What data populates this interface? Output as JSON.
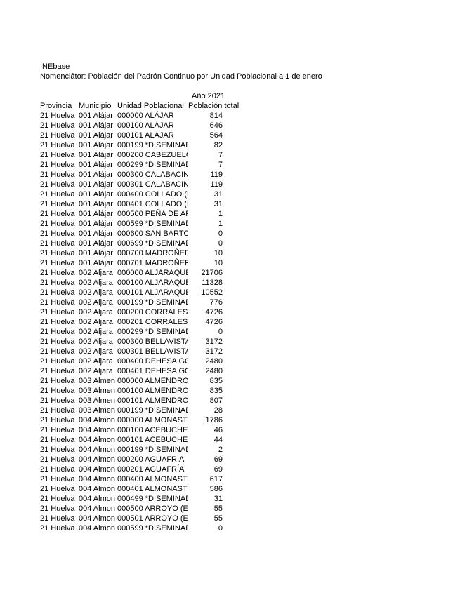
{
  "page": {
    "title": "INEbase",
    "subtitle": "Nomenclátor: Población del Padrón Continuo por Unidad Poblacional a 1 de enero"
  },
  "colors": {
    "text": "#000000",
    "background": "#ffffff"
  },
  "table": {
    "year_header": "Año 2021",
    "columns": {
      "provincia": "Provincia",
      "municipio": "Municipio",
      "unidad": "Unidad Poblacional",
      "poblacion": "Población total"
    },
    "rows": [
      {
        "provincia": "21 Huelva",
        "municipio": "001 Alájar",
        "unidad": "000000 ALÁJAR",
        "poblacion": "814"
      },
      {
        "provincia": "21 Huelva",
        "municipio": "001 Alájar",
        "unidad": "000100 ALÁJAR",
        "poblacion": "646"
      },
      {
        "provincia": "21 Huelva",
        "municipio": "001 Alájar",
        "unidad": "000101 ALÁJAR",
        "poblacion": "564"
      },
      {
        "provincia": "21 Huelva",
        "municipio": "001 Alájar",
        "unidad": "000199 *DISEMINAD",
        "poblacion": "82"
      },
      {
        "provincia": "21 Huelva",
        "municipio": "001 Alájar",
        "unidad": "000200 CABEZUELO",
        "poblacion": "7"
      },
      {
        "provincia": "21 Huelva",
        "municipio": "001 Alájar",
        "unidad": "000299 *DISEMINAD",
        "poblacion": "7"
      },
      {
        "provincia": "21 Huelva",
        "municipio": "001 Alájar",
        "unidad": "000300 CALABACIN(",
        "poblacion": "119"
      },
      {
        "provincia": "21 Huelva",
        "municipio": "001 Alájar",
        "unidad": "000301 CALABACIN(",
        "poblacion": "119"
      },
      {
        "provincia": "21 Huelva",
        "municipio": "001 Alájar",
        "unidad": "000400 COLLADO (E",
        "poblacion": "31"
      },
      {
        "provincia": "21 Huelva",
        "municipio": "001 Alájar",
        "unidad": "000401 COLLADO (E",
        "poblacion": "31"
      },
      {
        "provincia": "21 Huelva",
        "municipio": "001 Alájar",
        "unidad": "000500 PEÑA DE AR",
        "poblacion": "1"
      },
      {
        "provincia": "21 Huelva",
        "municipio": "001 Alájar",
        "unidad": "000599 *DISEMINAD",
        "poblacion": "1"
      },
      {
        "provincia": "21 Huelva",
        "municipio": "001 Alájar",
        "unidad": "000600 SAN BARTO",
        "poblacion": "0"
      },
      {
        "provincia": "21 Huelva",
        "municipio": "001 Alájar",
        "unidad": "000699 *DISEMINAD",
        "poblacion": "0"
      },
      {
        "provincia": "21 Huelva",
        "municipio": "001 Alájar",
        "unidad": "000700 MADROÑER(",
        "poblacion": "10"
      },
      {
        "provincia": "21 Huelva",
        "municipio": "001 Alájar",
        "unidad": "000701 MADROÑER(",
        "poblacion": "10"
      },
      {
        "provincia": "21 Huelva",
        "municipio": "002 Aljara",
        "unidad": "000000 ALJARAQUE",
        "poblacion": "21706"
      },
      {
        "provincia": "21 Huelva",
        "municipio": "002 Aljara",
        "unidad": "000100 ALJARAQUE",
        "poblacion": "11328"
      },
      {
        "provincia": "21 Huelva",
        "municipio": "002 Aljara",
        "unidad": "000101 ALJARAQUE",
        "poblacion": "10552"
      },
      {
        "provincia": "21 Huelva",
        "municipio": "002 Aljara",
        "unidad": "000199 *DISEMINAD",
        "poblacion": "776"
      },
      {
        "provincia": "21 Huelva",
        "municipio": "002 Aljara",
        "unidad": "000200 CORRALES",
        "poblacion": "4726"
      },
      {
        "provincia": "21 Huelva",
        "municipio": "002 Aljara",
        "unidad": "000201 CORRALES",
        "poblacion": "4726"
      },
      {
        "provincia": "21 Huelva",
        "municipio": "002 Aljara",
        "unidad": "000299 *DISEMINAD",
        "poblacion": "0"
      },
      {
        "provincia": "21 Huelva",
        "municipio": "002 Aljara",
        "unidad": "000300 BELLAVISTA",
        "poblacion": "3172"
      },
      {
        "provincia": "21 Huelva",
        "municipio": "002 Aljara",
        "unidad": "000301 BELLAVISTA",
        "poblacion": "3172"
      },
      {
        "provincia": "21 Huelva",
        "municipio": "002 Aljara",
        "unidad": "000400 DEHESA GO",
        "poblacion": "2480"
      },
      {
        "provincia": "21 Huelva",
        "municipio": "002 Aljara",
        "unidad": "000401 DEHESA GO",
        "poblacion": "2480"
      },
      {
        "provincia": "21 Huelva",
        "municipio": "003 Almen",
        "unidad": "000000 ALMENDRO (",
        "poblacion": "835"
      },
      {
        "provincia": "21 Huelva",
        "municipio": "003 Almen",
        "unidad": "000100 ALMENDRO (",
        "poblacion": "835"
      },
      {
        "provincia": "21 Huelva",
        "municipio": "003 Almen",
        "unidad": "000101 ALMENDRO (",
        "poblacion": "807"
      },
      {
        "provincia": "21 Huelva",
        "municipio": "003 Almen",
        "unidad": "000199 *DISEMINAD",
        "poblacion": "28"
      },
      {
        "provincia": "21 Huelva",
        "municipio": "004 Almon",
        "unidad": "000000 ALMONASTE",
        "poblacion": "1786"
      },
      {
        "provincia": "21 Huelva",
        "municipio": "004 Almon",
        "unidad": "000100 ACEBUCHE",
        "poblacion": "46"
      },
      {
        "provincia": "21 Huelva",
        "municipio": "004 Almon",
        "unidad": "000101 ACEBUCHE",
        "poblacion": "44"
      },
      {
        "provincia": "21 Huelva",
        "municipio": "004 Almon",
        "unidad": "000199 *DISEMINAD",
        "poblacion": "2"
      },
      {
        "provincia": "21 Huelva",
        "municipio": "004 Almon",
        "unidad": "000200 AGUAFRÍA",
        "poblacion": "69"
      },
      {
        "provincia": "21 Huelva",
        "municipio": "004 Almon",
        "unidad": "000201 AGUAFRÍA",
        "poblacion": "69"
      },
      {
        "provincia": "21 Huelva",
        "municipio": "004 Almon",
        "unidad": "000400 ALMONASTE",
        "poblacion": "617"
      },
      {
        "provincia": "21 Huelva",
        "municipio": "004 Almon",
        "unidad": "000401 ALMONASTE",
        "poblacion": "586"
      },
      {
        "provincia": "21 Huelva",
        "municipio": "004 Almon",
        "unidad": "000499 *DISEMINAD",
        "poblacion": "31"
      },
      {
        "provincia": "21 Huelva",
        "municipio": "004 Almon",
        "unidad": "000500 ARROYO (EL",
        "poblacion": "55"
      },
      {
        "provincia": "21 Huelva",
        "municipio": "004 Almon",
        "unidad": "000501 ARROYO (EL",
        "poblacion": "55"
      },
      {
        "provincia": "21 Huelva",
        "municipio": "004 Almon",
        "unidad": "000599 *DISEMINAD",
        "poblacion": "0"
      }
    ]
  }
}
